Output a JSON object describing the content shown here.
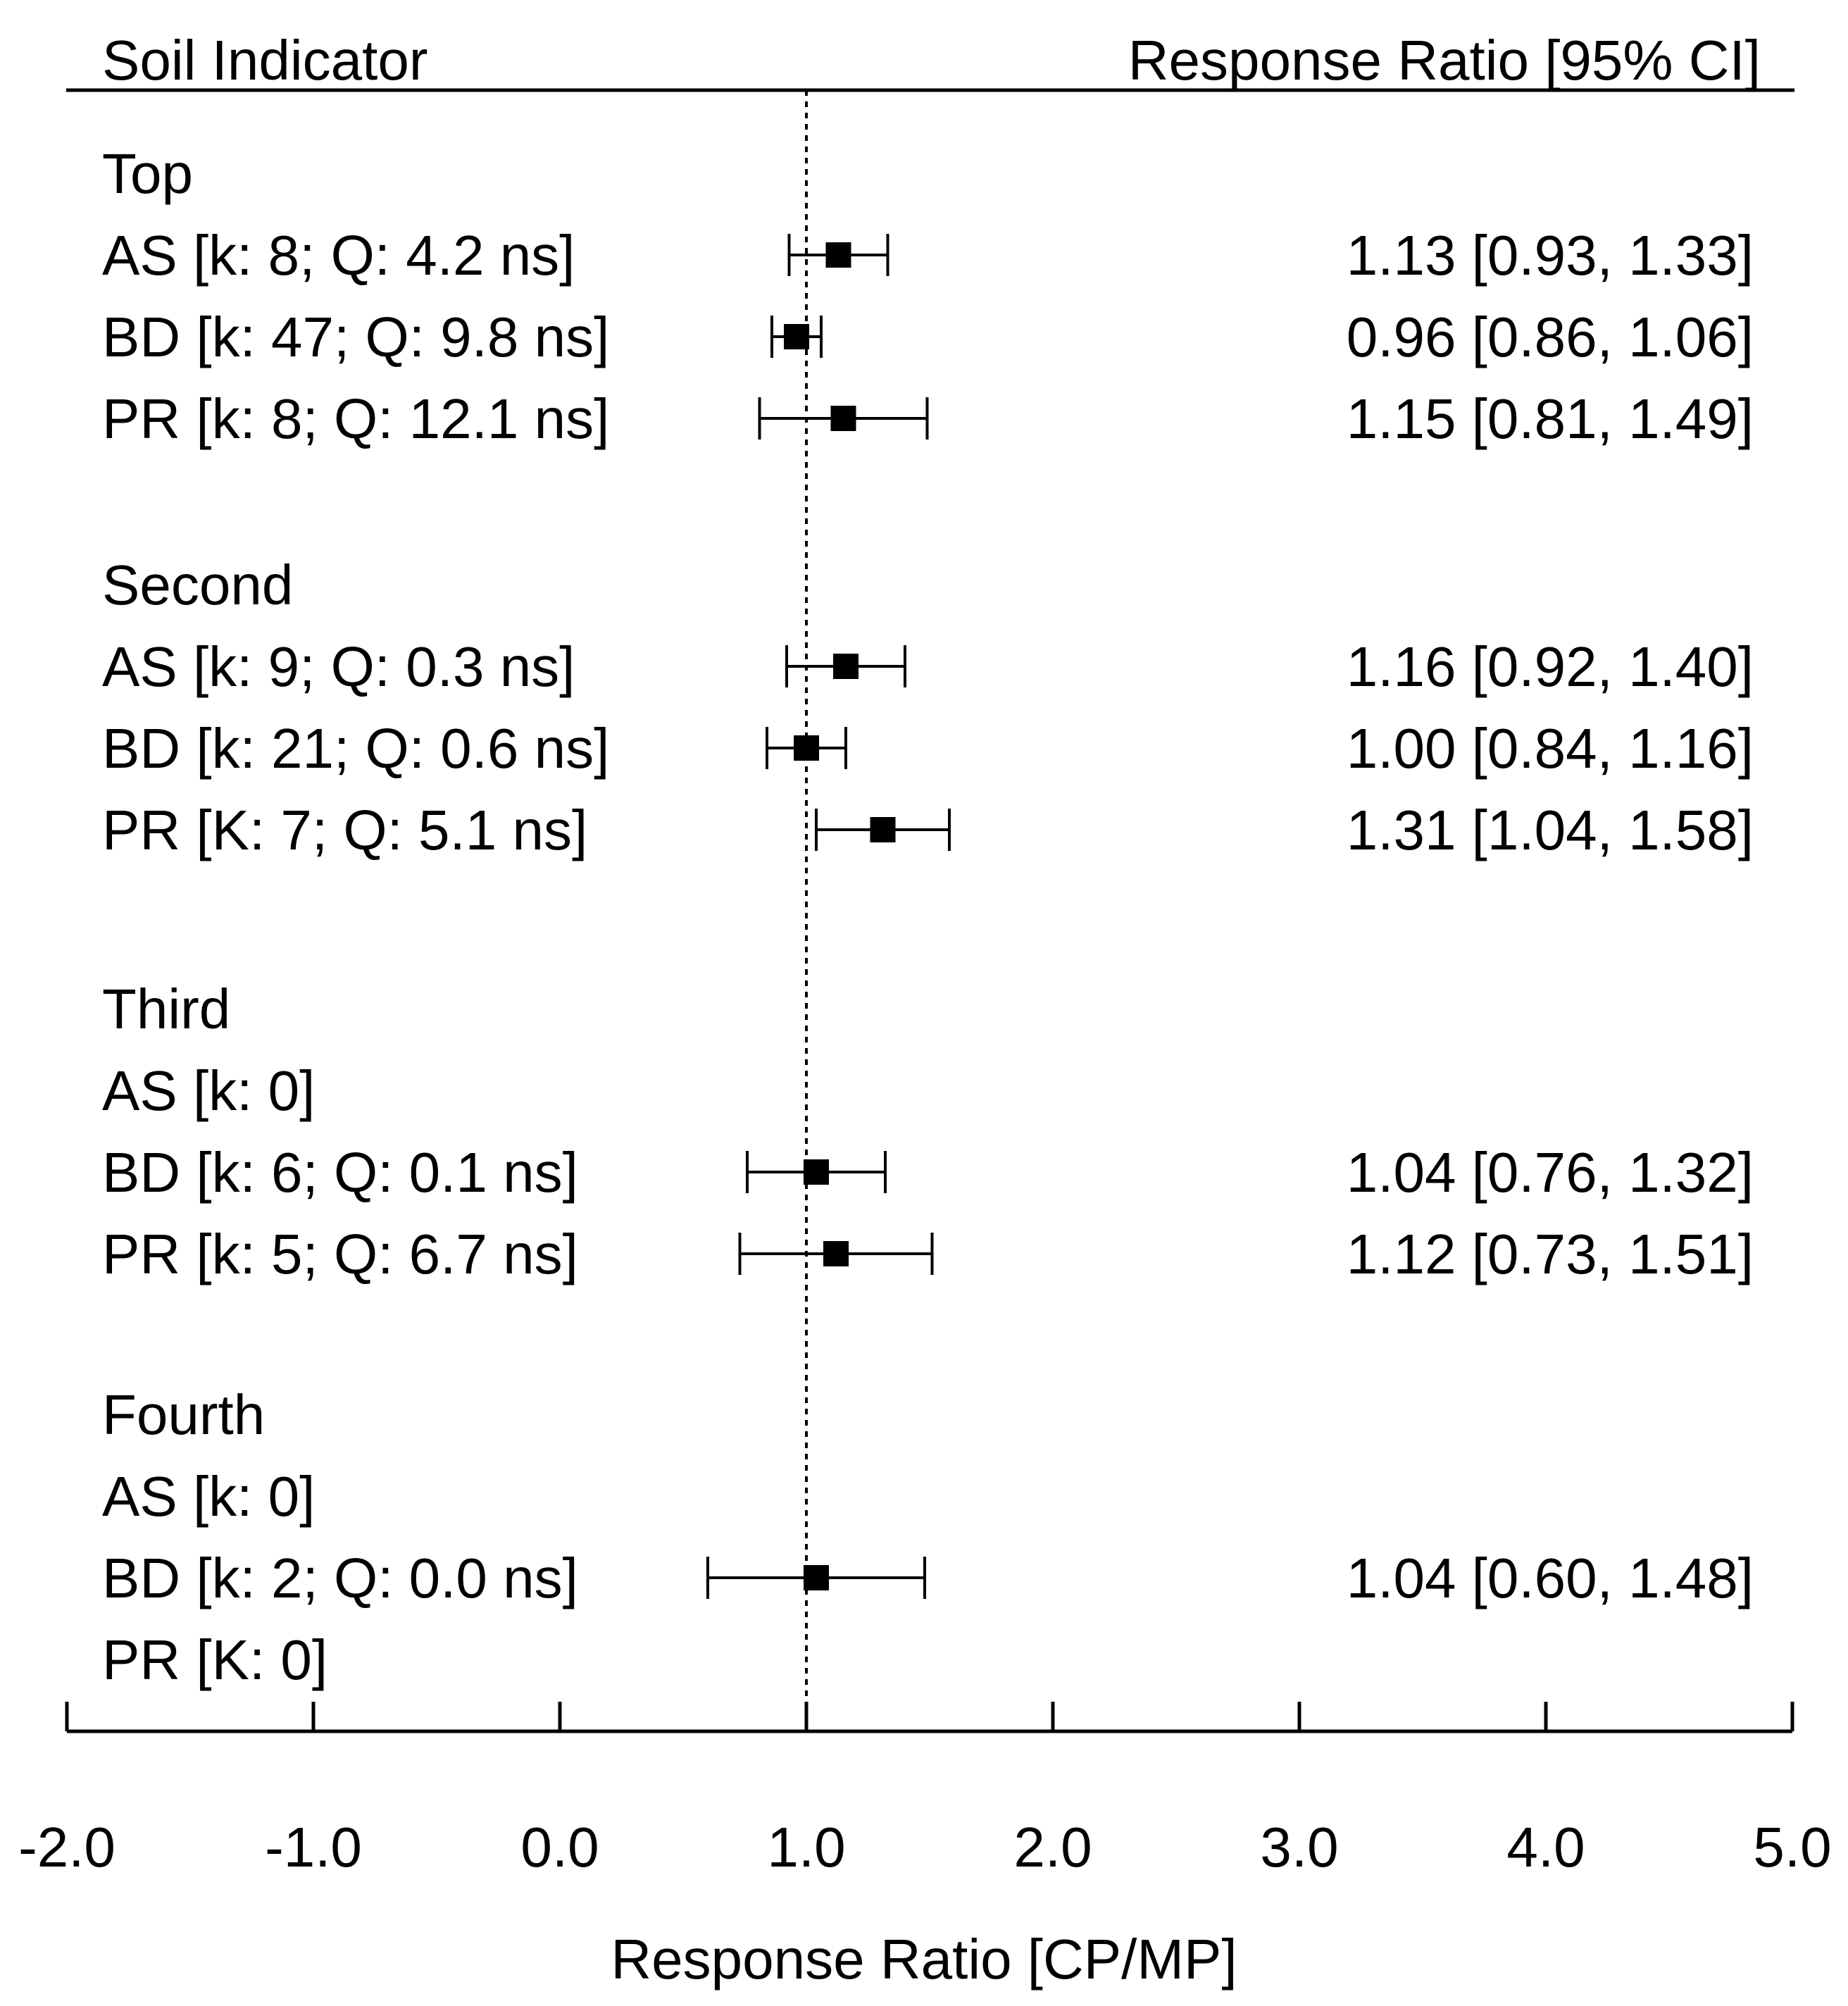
{
  "chart_data": {
    "type": "forest",
    "header_left": "Soil Indicator",
    "header_right": "Response Ratio [95% CI]",
    "xlabel": "Response Ratio [CP/MP]",
    "xlim": [
      -2.0,
      5.0
    ],
    "reference_line": 1.0,
    "xticks": [
      "-2.0",
      "-1.0",
      "0.0",
      "1.0",
      "2.0",
      "3.0",
      "4.0",
      "5.0"
    ],
    "xtick_values": [
      -2,
      -1,
      0,
      1,
      2,
      3,
      4,
      5
    ],
    "groups": [
      {
        "name": "Top",
        "rows": [
          {
            "label": "AS [k: 8; Q: 4.2 ns]",
            "est": 1.13,
            "lo": 0.93,
            "hi": 1.33,
            "ci_text": "1.13 [0.93, 1.33]"
          },
          {
            "label": "BD [k: 47; Q: 9.8 ns]",
            "est": 0.96,
            "lo": 0.86,
            "hi": 1.06,
            "ci_text": "0.96 [0.86, 1.06]"
          },
          {
            "label": "PR [k: 8; Q: 12.1 ns]",
            "est": 1.15,
            "lo": 0.81,
            "hi": 1.49,
            "ci_text": "1.15 [0.81, 1.49]"
          }
        ]
      },
      {
        "name": "Second",
        "rows": [
          {
            "label": "AS [k: 9; Q: 0.3 ns]",
            "est": 1.16,
            "lo": 0.92,
            "hi": 1.4,
            "ci_text": "1.16 [0.92, 1.40]"
          },
          {
            "label": "BD [k: 21; Q: 0.6 ns]",
            "est": 1.0,
            "lo": 0.84,
            "hi": 1.16,
            "ci_text": "1.00 [0.84, 1.16]"
          },
          {
            "label": "PR [K: 7; Q: 5.1 ns]",
            "est": 1.31,
            "lo": 1.04,
            "hi": 1.58,
            "ci_text": "1.31 [1.04, 1.58]"
          }
        ]
      },
      {
        "name": "Third",
        "rows": [
          {
            "label": "AS [k: 0]",
            "est": null,
            "lo": null,
            "hi": null,
            "ci_text": ""
          },
          {
            "label": "BD [k: 6; Q: 0.1 ns]",
            "est": 1.04,
            "lo": 0.76,
            "hi": 1.32,
            "ci_text": "1.04 [0.76, 1.32]"
          },
          {
            "label": "PR [k: 5; Q: 6.7 ns]",
            "est": 1.12,
            "lo": 0.73,
            "hi": 1.51,
            "ci_text": "1.12 [0.73, 1.51]"
          }
        ]
      },
      {
        "name": "Fourth",
        "rows": [
          {
            "label": "AS [k: 0]",
            "est": null,
            "lo": null,
            "hi": null,
            "ci_text": ""
          },
          {
            "label": "BD [k: 2; Q: 0.0 ns]",
            "est": 1.04,
            "lo": 0.6,
            "hi": 1.48,
            "ci_text": "1.04 [0.60, 1.48]"
          },
          {
            "label": "PR [K: 0]",
            "est": null,
            "lo": null,
            "hi": null,
            "ci_text": ""
          }
        ]
      }
    ]
  }
}
